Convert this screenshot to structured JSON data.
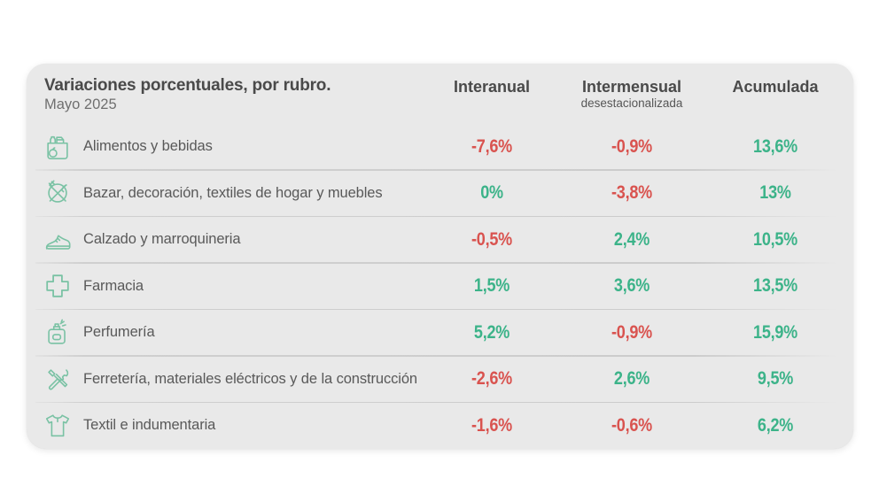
{
  "card": {
    "title": "Variaciones porcentuales, por rubro.",
    "subtitle": "Mayo 2025",
    "background": "#e9e9e9"
  },
  "columns": [
    {
      "label": "Interanual",
      "sublabel": ""
    },
    {
      "label": "Intermensual",
      "sublabel": "desestacionalizada"
    },
    {
      "label": "Acumulada",
      "sublabel": ""
    }
  ],
  "colors": {
    "positive": "#3cb389",
    "negative": "#d9534f",
    "icon": "#7ac2a4"
  },
  "rows": [
    {
      "label": "Alimentos y bebidas",
      "icon": "groceries-icon",
      "values": [
        {
          "text": "-7,6%",
          "tone": "negative"
        },
        {
          "text": "-0,9%",
          "tone": "negative"
        },
        {
          "text": "13,6%",
          "tone": "positive"
        }
      ]
    },
    {
      "label": "Bazar, decoración, textiles de hogar y muebles",
      "icon": "tableware-icon",
      "values": [
        {
          "text": "0%",
          "tone": "positive"
        },
        {
          "text": "-3,8%",
          "tone": "negative"
        },
        {
          "text": "13%",
          "tone": "positive"
        }
      ]
    },
    {
      "label": "Calzado y marroquineria",
      "icon": "shoe-icon",
      "values": [
        {
          "text": "-0,5%",
          "tone": "negative"
        },
        {
          "text": "2,4%",
          "tone": "positive"
        },
        {
          "text": "10,5%",
          "tone": "positive"
        }
      ]
    },
    {
      "label": "Farmacia",
      "icon": "pharmacy-cross-icon",
      "values": [
        {
          "text": "1,5%",
          "tone": "positive"
        },
        {
          "text": "3,6%",
          "tone": "positive"
        },
        {
          "text": "13,5%",
          "tone": "positive"
        }
      ]
    },
    {
      "label": "Perfumería",
      "icon": "perfume-icon",
      "values": [
        {
          "text": "5,2%",
          "tone": "positive"
        },
        {
          "text": "-0,9%",
          "tone": "negative"
        },
        {
          "text": "15,9%",
          "tone": "positive"
        }
      ]
    },
    {
      "label": "Ferretería, materiales eléctricos y de la construcción",
      "icon": "tools-icon",
      "values": [
        {
          "text": "-2,6%",
          "tone": "negative"
        },
        {
          "text": "2,6%",
          "tone": "positive"
        },
        {
          "text": "9,5%",
          "tone": "positive"
        }
      ]
    },
    {
      "label": "Textil e indumentaria",
      "icon": "tshirt-icon",
      "values": [
        {
          "text": "-1,6%",
          "tone": "negative"
        },
        {
          "text": "-0,6%",
          "tone": "negative"
        },
        {
          "text": "6,2%",
          "tone": "positive"
        }
      ]
    }
  ],
  "chart_data": {
    "type": "table",
    "title": "Variaciones porcentuales, por rubro.",
    "subtitle": "Mayo 2025",
    "unit": "%",
    "columns": [
      "Interanual",
      "Intermensual desestacionalizada",
      "Acumulada"
    ],
    "rows": [
      {
        "category": "Alimentos y bebidas",
        "interanual": -7.6,
        "intermensual_desestacionalizada": -0.9,
        "acumulada": 13.6
      },
      {
        "category": "Bazar, decoración, textiles de hogar y muebles",
        "interanual": 0,
        "intermensual_desestacionalizada": -3.8,
        "acumulada": 13
      },
      {
        "category": "Calzado y marroquineria",
        "interanual": -0.5,
        "intermensual_desestacionalizada": 2.4,
        "acumulada": 10.5
      },
      {
        "category": "Farmacia",
        "interanual": 1.5,
        "intermensual_desestacionalizada": 3.6,
        "acumulada": 13.5
      },
      {
        "category": "Perfumería",
        "interanual": 5.2,
        "intermensual_desestacionalizada": -0.9,
        "acumulada": 15.9
      },
      {
        "category": "Ferretería, materiales eléctricos y de la construcción",
        "interanual": -2.6,
        "intermensual_desestacionalizada": 2.6,
        "acumulada": 9.5
      },
      {
        "category": "Textil e indumentaria",
        "interanual": -1.6,
        "intermensual_desestacionalizada": -0.6,
        "acumulada": 6.2
      }
    ]
  }
}
